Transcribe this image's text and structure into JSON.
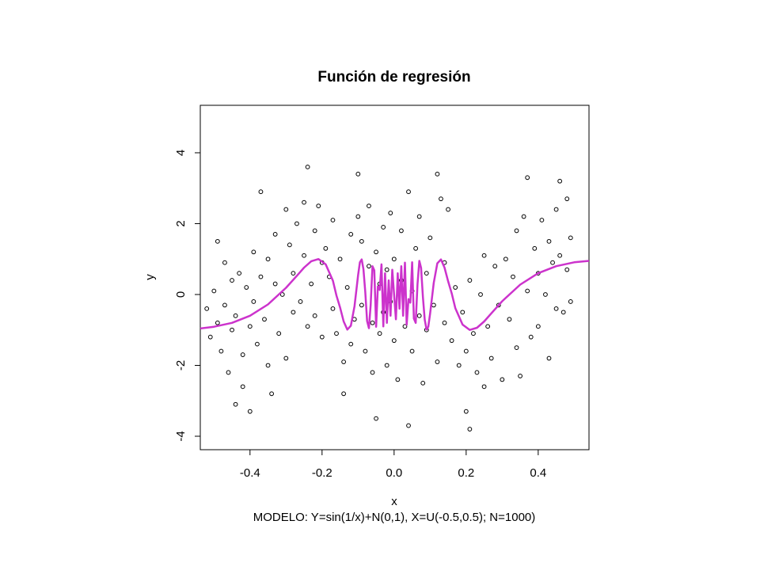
{
  "chart_data": {
    "type": "scatter",
    "title": "Función de regresión",
    "subtitle": "MODELO: Y=sin(1/x)+N(0,1), X=U(-0.5,0.5);  N=1000)",
    "x_label": "x",
    "y_label": "y",
    "xlim": [
      -0.538,
      0.541
    ],
    "ylim": [
      -4.38,
      5.34
    ],
    "xticks": [
      -0.4,
      -0.2,
      {
        "value": 0,
        "label": "0.0"
      },
      0.2,
      0.4
    ],
    "yticks": [
      -4,
      -2,
      0,
      2,
      4
    ],
    "point_color": "#000000",
    "x": [
      -0.52,
      -0.51,
      -0.5,
      -0.49,
      -0.49,
      -0.48,
      -0.47,
      -0.47,
      -0.46,
      -0.45,
      -0.45,
      -0.44,
      -0.44,
      -0.43,
      -0.42,
      -0.42,
      -0.41,
      -0.4,
      -0.4,
      -0.39,
      -0.39,
      -0.38,
      -0.37,
      -0.37,
      -0.36,
      -0.35,
      -0.35,
      -0.34,
      -0.33,
      -0.33,
      -0.32,
      -0.31,
      -0.3,
      -0.3,
      -0.29,
      -0.28,
      -0.28,
      -0.27,
      -0.26,
      -0.25,
      -0.25,
      -0.24,
      -0.24,
      -0.23,
      -0.22,
      -0.22,
      -0.21,
      -0.2,
      -0.2,
      -0.19,
      -0.18,
      -0.17,
      -0.17,
      -0.16,
      -0.15,
      -0.14,
      -0.14,
      -0.13,
      -0.12,
      -0.12,
      -0.11,
      -0.1,
      -0.1,
      -0.09,
      -0.09,
      -0.08,
      -0.07,
      -0.07,
      -0.06,
      -0.06,
      -0.05,
      -0.05,
      -0.04,
      -0.04,
      -0.03,
      -0.03,
      -0.02,
      -0.02,
      -0.01,
      -0.01,
      0.0,
      0.0,
      0.01,
      0.02,
      0.02,
      0.03,
      0.04,
      0.04,
      0.05,
      0.05,
      0.06,
      0.07,
      0.07,
      0.08,
      0.09,
      0.09,
      0.1,
      0.11,
      0.12,
      0.12,
      0.13,
      0.14,
      0.14,
      0.15,
      0.16,
      0.17,
      0.18,
      0.19,
      0.2,
      0.2,
      0.21,
      0.21,
      0.22,
      0.23,
      0.24,
      0.25,
      0.25,
      0.26,
      0.27,
      0.28,
      0.29,
      0.3,
      0.31,
      0.32,
      0.33,
      0.34,
      0.34,
      0.35,
      0.36,
      0.37,
      0.37,
      0.38,
      0.39,
      0.4,
      0.4,
      0.41,
      0.42,
      0.43,
      0.43,
      0.44,
      0.45,
      0.45,
      0.46,
      0.46,
      0.47,
      0.48,
      0.48,
      0.49,
      0.49
    ],
    "values": [
      -0.4,
      -1.2,
      0.1,
      1.5,
      -0.8,
      -1.6,
      0.9,
      -0.3,
      -2.2,
      0.4,
      -1.0,
      -3.1,
      -0.6,
      0.6,
      -1.7,
      -2.6,
      0.2,
      -0.9,
      -3.3,
      1.2,
      -0.2,
      -1.4,
      2.9,
      0.5,
      -0.7,
      -2.0,
      1.0,
      -2.8,
      0.3,
      1.7,
      -1.1,
      0.0,
      2.4,
      -1.8,
      1.4,
      0.6,
      -0.5,
      2.0,
      -0.2,
      1.1,
      2.6,
      -0.9,
      3.6,
      0.3,
      1.8,
      -0.6,
      2.5,
      0.9,
      -1.2,
      1.3,
      0.5,
      2.1,
      -0.4,
      -1.1,
      1.0,
      -1.9,
      -2.8,
      0.2,
      -1.4,
      1.7,
      -0.7,
      2.2,
      3.4,
      -0.3,
      1.5,
      -1.6,
      0.8,
      2.5,
      -0.8,
      -2.2,
      1.2,
      -3.5,
      0.3,
      -1.1,
      1.9,
      -0.5,
      0.7,
      -2.0,
      2.3,
      -0.2,
      1.0,
      -1.3,
      -2.4,
      0.4,
      1.8,
      -0.9,
      -3.7,
      2.9,
      0.1,
      -1.6,
      1.3,
      -0.6,
      2.2,
      -2.5,
      0.6,
      -1.0,
      1.6,
      -0.3,
      3.4,
      -1.9,
      2.7,
      0.9,
      -0.8,
      2.4,
      -1.3,
      0.2,
      -2.0,
      -0.5,
      -1.6,
      -3.3,
      0.4,
      -3.8,
      -1.1,
      -2.2,
      0.0,
      -2.6,
      1.1,
      -0.9,
      -1.8,
      0.8,
      -0.3,
      -2.4,
      1.0,
      -0.7,
      0.5,
      -1.5,
      1.8,
      -2.3,
      2.2,
      0.1,
      3.3,
      -1.2,
      1.3,
      0.6,
      -0.9,
      2.1,
      0.0,
      1.5,
      -1.8,
      0.9,
      2.4,
      -0.4,
      3.2,
      1.1,
      -0.5,
      2.7,
      0.7,
      1.6,
      -0.2
    ],
    "curve": {
      "color": "#cc33cc",
      "x": [
        -0.538,
        -0.5,
        -0.45,
        -0.4,
        -0.35,
        -0.3,
        -0.27,
        -0.25,
        -0.23,
        -0.21,
        -0.19,
        -0.17,
        -0.16,
        -0.15,
        -0.14,
        -0.13,
        -0.12,
        -0.11,
        -0.1,
        -0.095,
        -0.09,
        -0.085,
        -0.08,
        -0.075,
        -0.07,
        -0.065,
        -0.06,
        -0.055,
        -0.05,
        -0.045,
        -0.04,
        -0.035,
        -0.03,
        -0.025,
        -0.02,
        -0.015,
        -0.01,
        -0.005,
        0.005,
        0.01,
        0.015,
        0.02,
        0.025,
        0.03,
        0.035,
        0.04,
        0.045,
        0.05,
        0.055,
        0.06,
        0.065,
        0.07,
        0.075,
        0.08,
        0.085,
        0.09,
        0.095,
        0.1,
        0.11,
        0.12,
        0.13,
        0.14,
        0.15,
        0.16,
        0.17,
        0.19,
        0.21,
        0.23,
        0.25,
        0.27,
        0.3,
        0.35,
        0.4,
        0.45,
        0.5,
        0.541
      ],
      "values": [
        -0.96,
        -0.91,
        -0.8,
        -0.6,
        -0.28,
        0.19,
        0.53,
        0.76,
        0.94,
        1.0,
        0.85,
        0.39,
        -0.03,
        -0.37,
        -0.76,
        -0.99,
        -0.88,
        -0.33,
        0.54,
        0.91,
        0.99,
        0.71,
        0.07,
        -0.75,
        -0.95,
        -0.3,
        0.8,
        0.68,
        -0.91,
        0.23,
        0.13,
        0.85,
        -0.9,
        0.6,
        -0.8,
        0.4,
        -0.6,
        0.7,
        -0.7,
        0.6,
        -0.4,
        0.8,
        -0.6,
        0.9,
        -0.85,
        -0.13,
        -0.23,
        0.91,
        -0.68,
        -0.8,
        0.3,
        0.95,
        0.75,
        -0.07,
        -0.71,
        -0.99,
        -0.91,
        -0.54,
        0.33,
        0.88,
        0.99,
        0.76,
        0.37,
        0.03,
        -0.39,
        -0.85,
        -1.0,
        -0.94,
        -0.76,
        -0.53,
        -0.19,
        0.28,
        0.6,
        0.8,
        0.91,
        0.95
      ]
    }
  }
}
